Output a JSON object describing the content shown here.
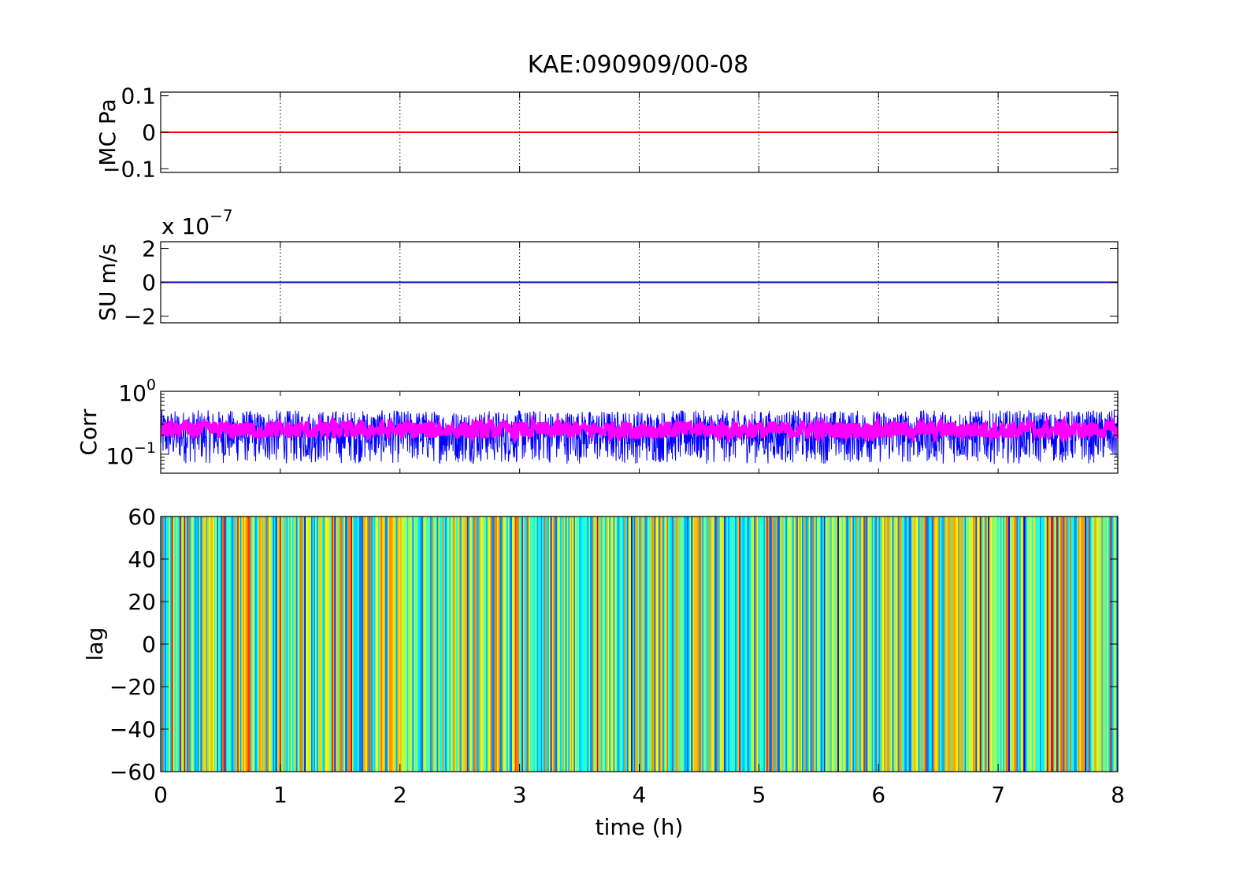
{
  "title": "KAE:090909/00-08",
  "xlabel": "time (h)",
  "colors": {
    "pressure_line": "#ff0000",
    "velocity_line": "#0000cc",
    "corr_raw": "#0000ff",
    "corr_smooth": "#ff00ff",
    "grid": "#000000"
  },
  "chart_data": [
    {
      "type": "line",
      "ylabel": "MC Pa",
      "xlim": [
        0,
        8
      ],
      "ylim": [
        -0.11,
        0.11
      ],
      "yticks": [
        "0.1",
        "0",
        "−0.1"
      ],
      "ytick_values": [
        0.1,
        0,
        -0.1
      ],
      "xgrid": "dotted",
      "series": [
        {
          "x": [
            0,
            8
          ],
          "values": [
            0,
            0
          ]
        }
      ]
    },
    {
      "type": "line",
      "ylabel": "SU m/s",
      "exponent_prefix": "x 10",
      "exponent": "−7",
      "xlim": [
        0,
        8
      ],
      "ylim": [
        -2.4,
        2.4
      ],
      "yticks": [
        "2",
        "0",
        "−2"
      ],
      "ytick_values": [
        2,
        0,
        -2
      ],
      "xgrid": "dotted",
      "series": [
        {
          "x": [
            0,
            8
          ],
          "values": [
            0,
            0
          ]
        }
      ]
    },
    {
      "type": "line",
      "ylabel": "Corr",
      "yscale": "log",
      "xlim": [
        0,
        8
      ],
      "ylim": [
        0.05,
        1
      ],
      "yticks_base": [
        "10",
        "10"
      ],
      "yticks_exp": [
        "0",
        "−1"
      ],
      "ytick_values": [
        1,
        0.1
      ],
      "series": [
        {
          "style": "raw",
          "typical_range": [
            0.07,
            0.5
          ],
          "center": 0.25
        },
        {
          "style": "smoothed",
          "typical_range": [
            0.18,
            0.33
          ],
          "center": 0.25
        }
      ]
    },
    {
      "type": "heatmap",
      "ylabel": "lag",
      "xlabel": "time (h)",
      "xlim": [
        0,
        8
      ],
      "ylim": [
        -60,
        60
      ],
      "xticks": [
        "0",
        "1",
        "2",
        "3",
        "4",
        "5",
        "6",
        "7",
        "8"
      ],
      "yticks": [
        "60",
        "40",
        "20",
        "0",
        "−20",
        "−40",
        "−60"
      ],
      "ytick_values": [
        60,
        40,
        20,
        0,
        -20,
        -40,
        -60
      ],
      "colormap": "jet"
    }
  ]
}
